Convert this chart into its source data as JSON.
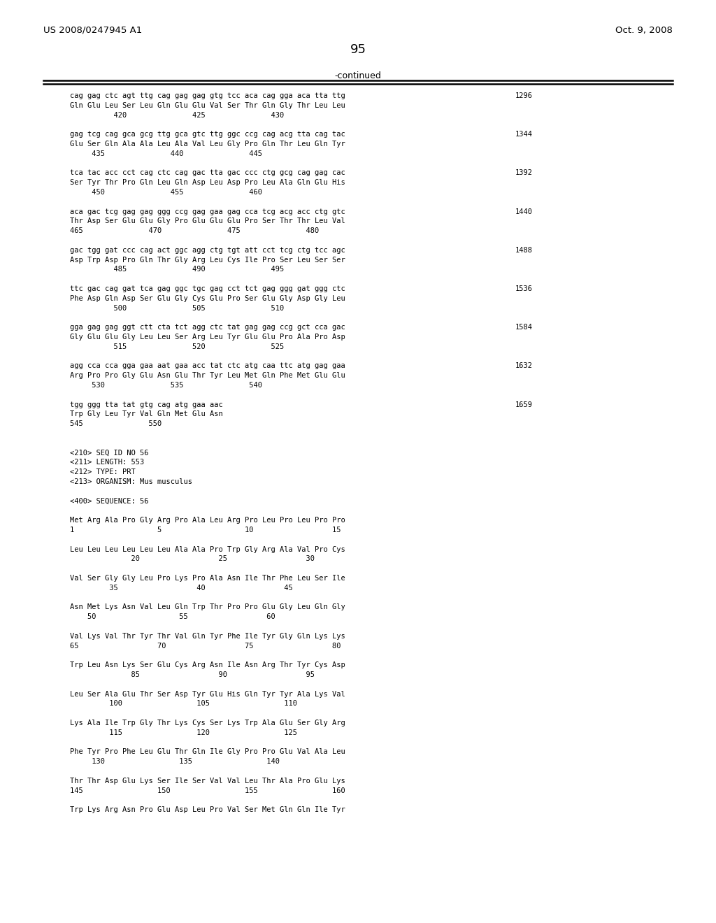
{
  "header_left": "US 2008/0247945 A1",
  "header_right": "Oct. 9, 2008",
  "page_number": "95",
  "continued_label": "-continued",
  "background_color": "#ffffff",
  "text_color": "#000000",
  "content_lines": [
    {
      "text": "cag gag ctc agt ttg cag gag gag gtg tcc aca cag gga aca tta ttg",
      "num": "1296"
    },
    {
      "text": "Gln Glu Leu Ser Leu Gln Glu Glu Val Ser Thr Gln Gly Thr Leu Leu",
      "num": ""
    },
    {
      "text": "          420               425               430",
      "num": ""
    },
    {
      "text": "",
      "num": ""
    },
    {
      "text": "gag tcg cag gca gcg ttg gca gtc ttg ggc ccg cag acg tta cag tac",
      "num": "1344"
    },
    {
      "text": "Glu Ser Gln Ala Ala Leu Ala Val Leu Gly Pro Gln Thr Leu Gln Tyr",
      "num": ""
    },
    {
      "text": "     435               440               445",
      "num": ""
    },
    {
      "text": "",
      "num": ""
    },
    {
      "text": "tca tac acc cct cag ctc cag gac tta gac ccc ctg gcg cag gag cac",
      "num": "1392"
    },
    {
      "text": "Ser Tyr Thr Pro Gln Leu Gln Asp Leu Asp Pro Leu Ala Gln Glu His",
      "num": ""
    },
    {
      "text": "     450               455               460",
      "num": ""
    },
    {
      "text": "",
      "num": ""
    },
    {
      "text": "aca gac tcg gag gag ggg ccg gag gaa gag cca tcg acg acc ctg gtc",
      "num": "1440"
    },
    {
      "text": "Thr Asp Ser Glu Glu Gly Pro Glu Glu Glu Pro Ser Thr Thr Leu Val",
      "num": ""
    },
    {
      "text": "465               470               475               480",
      "num": ""
    },
    {
      "text": "",
      "num": ""
    },
    {
      "text": "gac tgg gat ccc cag act ggc agg ctg tgt att cct tcg ctg tcc agc",
      "num": "1488"
    },
    {
      "text": "Asp Trp Asp Pro Gln Thr Gly Arg Leu Cys Ile Pro Ser Leu Ser Ser",
      "num": ""
    },
    {
      "text": "          485               490               495",
      "num": ""
    },
    {
      "text": "",
      "num": ""
    },
    {
      "text": "ttc gac cag gat tca gag ggc tgc gag cct tct gag ggg gat ggg ctc",
      "num": "1536"
    },
    {
      "text": "Phe Asp Gln Asp Ser Glu Gly Cys Glu Pro Ser Glu Gly Asp Gly Leu",
      "num": ""
    },
    {
      "text": "          500               505               510",
      "num": ""
    },
    {
      "text": "",
      "num": ""
    },
    {
      "text": "gga gag gag ggt ctt cta tct agg ctc tat gag gag ccg gct cca gac",
      "num": "1584"
    },
    {
      "text": "Gly Glu Glu Gly Leu Leu Ser Arg Leu Tyr Glu Glu Pro Ala Pro Asp",
      "num": ""
    },
    {
      "text": "          515               520               525",
      "num": ""
    },
    {
      "text": "",
      "num": ""
    },
    {
      "text": "agg cca cca gga gaa aat gaa acc tat ctc atg caa ttc atg gag gaa",
      "num": "1632"
    },
    {
      "text": "Arg Pro Pro Gly Glu Asn Glu Thr Tyr Leu Met Gln Phe Met Glu Glu",
      "num": ""
    },
    {
      "text": "     530               535               540",
      "num": ""
    },
    {
      "text": "",
      "num": ""
    },
    {
      "text": "tgg ggg tta tat gtg cag atg gaa aac",
      "num": "1659"
    },
    {
      "text": "Trp Gly Leu Tyr Val Gln Met Glu Asn",
      "num": ""
    },
    {
      "text": "545               550",
      "num": ""
    },
    {
      "text": "",
      "num": ""
    },
    {
      "text": "",
      "num": ""
    },
    {
      "text": "<210> SEQ ID NO 56",
      "num": ""
    },
    {
      "text": "<211> LENGTH: 553",
      "num": ""
    },
    {
      "text": "<212> TYPE: PRT",
      "num": ""
    },
    {
      "text": "<213> ORGANISM: Mus musculus",
      "num": ""
    },
    {
      "text": "",
      "num": ""
    },
    {
      "text": "<400> SEQUENCE: 56",
      "num": ""
    },
    {
      "text": "",
      "num": ""
    },
    {
      "text": "Met Arg Ala Pro Gly Arg Pro Ala Leu Arg Pro Leu Pro Leu Pro Pro",
      "num": ""
    },
    {
      "text": "1                   5                   10                  15",
      "num": ""
    },
    {
      "text": "",
      "num": ""
    },
    {
      "text": "Leu Leu Leu Leu Leu Leu Ala Ala Pro Trp Gly Arg Ala Val Pro Cys",
      "num": ""
    },
    {
      "text": "              20                  25                  30",
      "num": ""
    },
    {
      "text": "",
      "num": ""
    },
    {
      "text": "Val Ser Gly Gly Leu Pro Lys Pro Ala Asn Ile Thr Phe Leu Ser Ile",
      "num": ""
    },
    {
      "text": "         35                  40                  45",
      "num": ""
    },
    {
      "text": "",
      "num": ""
    },
    {
      "text": "Asn Met Lys Asn Val Leu Gln Trp Thr Pro Pro Glu Gly Leu Gln Gly",
      "num": ""
    },
    {
      "text": "    50                   55                  60",
      "num": ""
    },
    {
      "text": "",
      "num": ""
    },
    {
      "text": "Val Lys Val Thr Tyr Thr Val Gln Tyr Phe Ile Tyr Gly Gln Lys Lys",
      "num": ""
    },
    {
      "text": "65                  70                  75                  80",
      "num": ""
    },
    {
      "text": "",
      "num": ""
    },
    {
      "text": "Trp Leu Asn Lys Ser Glu Cys Arg Asn Ile Asn Arg Thr Tyr Cys Asp",
      "num": ""
    },
    {
      "text": "              85                  90                  95",
      "num": ""
    },
    {
      "text": "",
      "num": ""
    },
    {
      "text": "Leu Ser Ala Glu Thr Ser Asp Tyr Glu His Gln Tyr Tyr Ala Lys Val",
      "num": ""
    },
    {
      "text": "         100                 105                 110",
      "num": ""
    },
    {
      "text": "",
      "num": ""
    },
    {
      "text": "Lys Ala Ile Trp Gly Thr Lys Cys Ser Lys Trp Ala Glu Ser Gly Arg",
      "num": ""
    },
    {
      "text": "         115                 120                 125",
      "num": ""
    },
    {
      "text": "",
      "num": ""
    },
    {
      "text": "Phe Tyr Pro Phe Leu Glu Thr Gln Ile Gly Pro Pro Glu Val Ala Leu",
      "num": ""
    },
    {
      "text": "     130                 135                 140",
      "num": ""
    },
    {
      "text": "",
      "num": ""
    },
    {
      "text": "Thr Thr Asp Glu Lys Ser Ile Ser Val Val Leu Thr Ala Pro Glu Lys",
      "num": ""
    },
    {
      "text": "145                 150                 155                 160",
      "num": ""
    },
    {
      "text": "",
      "num": ""
    },
    {
      "text": "Trp Lys Arg Asn Pro Glu Asp Leu Pro Val Ser Met Gln Gln Ile Tyr",
      "num": ""
    }
  ]
}
